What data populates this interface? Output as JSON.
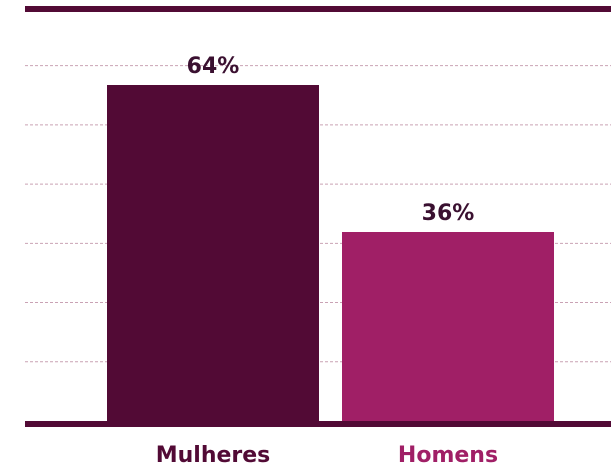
{
  "chart_data": {
    "type": "bar",
    "categories": [
      "Mulheres",
      "Homens"
    ],
    "values": [
      64,
      36
    ],
    "value_labels": [
      "64%",
      "36%"
    ],
    "unit": "%",
    "ylim": [
      0,
      75
    ],
    "grid": true,
    "title": "",
    "xlabel": "",
    "ylabel": "",
    "colors": {
      "bars": [
        "#520a35",
        "#a01f66"
      ],
      "category_labels": [
        "#520a35",
        "#a01f66"
      ],
      "frame": "#520a35",
      "grid": "#c9a2b4",
      "value_labels": "#3a1030"
    }
  }
}
